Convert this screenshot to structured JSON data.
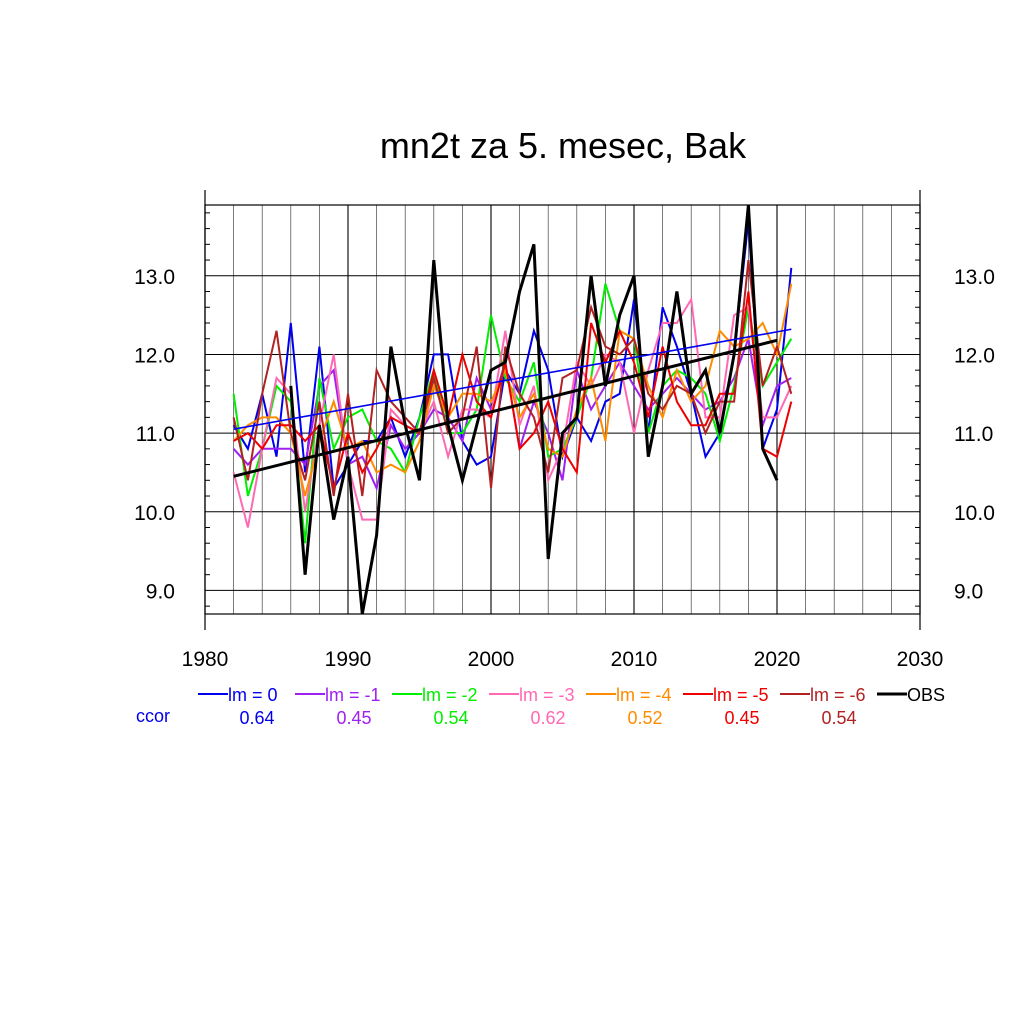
{
  "chart_data": {
    "type": "line",
    "title": "mn2t za 5. mesec, Bak",
    "xlabel": "",
    "ylabel": "",
    "xlim": [
      1980,
      2030
    ],
    "ylim": [
      8.7,
      13.9
    ],
    "x_ticks": [
      1980,
      1990,
      2000,
      2010,
      2020,
      2030
    ],
    "x_tick_labels": [
      "1980",
      "1990",
      "2000",
      "2010",
      "2020",
      "2030"
    ],
    "y_ticks": [
      9,
      10,
      11,
      12,
      13
    ],
    "y_tick_labels": [
      "9.0",
      "10.0",
      "11.0",
      "12.0",
      "13.0"
    ],
    "grid": true,
    "x": [
      1982,
      1983,
      1984,
      1985,
      1986,
      1987,
      1988,
      1989,
      1990,
      1991,
      1992,
      1993,
      1994,
      1995,
      1996,
      1997,
      1998,
      1999,
      2000,
      2001,
      2002,
      2003,
      2004,
      2005,
      2006,
      2007,
      2008,
      2009,
      2010,
      2011,
      2012,
      2013,
      2014,
      2015,
      2016,
      2017,
      2018,
      2019,
      2020,
      2021
    ],
    "series": [
      {
        "name": "lm = 0",
        "color": "#0000ee",
        "values": [
          11.1,
          10.8,
          11.5,
          10.7,
          12.4,
          10.5,
          12.1,
          10.3,
          10.6,
          10.9,
          10.9,
          11.2,
          10.7,
          11.2,
          12.0,
          12.0,
          10.9,
          10.6,
          10.7,
          11.8,
          11.5,
          12.3,
          11.8,
          10.7,
          11.2,
          10.9,
          11.4,
          11.5,
          12.7,
          11.0,
          12.6,
          12.1,
          11.5,
          10.7,
          11.0,
          12.0,
          13.7,
          10.8,
          11.3,
          13.1
        ]
      },
      {
        "name": "lm = -1",
        "color": "#a020f0",
        "values": [
          10.8,
          10.6,
          10.8,
          10.8,
          10.8,
          10.6,
          11.6,
          11.8,
          10.6,
          10.7,
          10.3,
          11.1,
          10.8,
          11.0,
          11.3,
          11.2,
          10.9,
          11.7,
          11.3,
          11.9,
          10.8,
          11.4,
          11.0,
          10.4,
          11.8,
          11.3,
          11.6,
          11.9,
          11.6,
          11.3,
          11.5,
          11.7,
          11.5,
          11.3,
          11.4,
          11.7,
          12.2,
          11.1,
          11.6,
          11.7
        ]
      },
      {
        "name": "lm = -2",
        "color": "#00ee00",
        "values": [
          11.5,
          10.2,
          10.8,
          11.6,
          11.4,
          9.6,
          11.7,
          10.8,
          11.2,
          11.3,
          10.9,
          10.8,
          10.5,
          11.2,
          11.8,
          11.0,
          11.0,
          11.3,
          12.5,
          11.7,
          11.4,
          11.9,
          10.7,
          10.8,
          11.2,
          11.7,
          12.9,
          12.3,
          12.2,
          11.0,
          11.6,
          11.8,
          11.7,
          11.5,
          10.9,
          11.6,
          12.6,
          11.6,
          11.9,
          12.2
        ]
      },
      {
        "name": "lm = -3",
        "color": "#ff69b4",
        "values": [
          10.5,
          9.8,
          10.8,
          11.7,
          11.5,
          10.0,
          11.1,
          12.0,
          10.6,
          9.9,
          9.9,
          11.3,
          11.1,
          11.0,
          11.4,
          10.7,
          11.3,
          11.3,
          11.2,
          12.3,
          11.1,
          11.6,
          10.4,
          10.8,
          11.9,
          11.6,
          12.0,
          11.9,
          11.0,
          11.8,
          12.4,
          12.4,
          12.7,
          11.2,
          11.2,
          12.5,
          12.6,
          11.2,
          11.2,
          11.6
        ]
      },
      {
        "name": "lm = -4",
        "color": "#ff8c00",
        "values": [
          10.9,
          11.1,
          11.2,
          11.2,
          11.0,
          10.2,
          10.9,
          11.4,
          10.8,
          10.9,
          10.5,
          10.6,
          10.5,
          10.9,
          11.6,
          11.2,
          11.5,
          11.5,
          11.4,
          11.8,
          11.2,
          11.5,
          10.8,
          10.7,
          11.3,
          11.7,
          10.9,
          12.3,
          12.2,
          11.6,
          11.2,
          11.8,
          11.4,
          11.6,
          12.3,
          12.1,
          12.2,
          12.4,
          12.0,
          12.9
        ]
      },
      {
        "name": "lm = -5",
        "color": "#ee0000",
        "values": [
          10.9,
          11.0,
          10.8,
          11.1,
          11.1,
          10.9,
          11.1,
          10.3,
          11.0,
          10.5,
          10.8,
          11.2,
          11.1,
          11.0,
          11.8,
          11.2,
          12.0,
          11.4,
          11.2,
          11.9,
          10.8,
          11.0,
          11.4,
          10.8,
          10.5,
          12.4,
          11.9,
          12.3,
          11.9,
          11.2,
          12.1,
          11.4,
          11.1,
          11.1,
          11.5,
          11.5,
          12.8,
          10.8,
          10.7,
          11.4
        ]
      },
      {
        "name": "lm = -6",
        "color": "#b22222",
        "values": [
          11.2,
          10.4,
          11.5,
          12.3,
          11.0,
          10.4,
          11.4,
          10.2,
          11.5,
          10.2,
          11.8,
          11.4,
          11.2,
          11.0,
          11.7,
          11.0,
          11.2,
          12.1,
          10.3,
          12.1,
          11.5,
          11.2,
          10.5,
          11.7,
          11.8,
          12.6,
          12.1,
          12.0,
          12.2,
          11.5,
          11.3,
          11.6,
          11.5,
          11.0,
          11.4,
          11.4,
          13.2,
          11.6,
          12.1,
          11.5
        ]
      },
      {
        "name": "OBS",
        "color": "#000000",
        "values": [
          null,
          null,
          null,
          null,
          11.6,
          9.2,
          11.1,
          9.9,
          10.7,
          8.7,
          9.7,
          12.1,
          11.1,
          10.4,
          13.2,
          11.1,
          10.4,
          11.1,
          11.8,
          11.9,
          12.8,
          13.4,
          9.4,
          11.0,
          11.2,
          13.0,
          11.6,
          12.5,
          13.0,
          10.7,
          11.6,
          12.8,
          11.5,
          11.8,
          11.0,
          12.0,
          13.9,
          10.8,
          10.4,
          null
        ]
      }
    ],
    "trend_lines": [
      {
        "series": "lm = 0",
        "color": "#0000ee",
        "x": [
          1982,
          2021
        ],
        "y": [
          11.05,
          12.32
        ]
      },
      {
        "series": "OBS",
        "color": "#000000",
        "x": [
          1982,
          2020
        ],
        "y": [
          10.45,
          12.18
        ]
      }
    ],
    "legend": {
      "placement": "bottom",
      "ccor_label": "ccor",
      "ccor_label_color": "#0000ee",
      "ccor_values": [
        "0.64",
        "0.45",
        "0.54",
        "0.62",
        "0.52",
        "0.45",
        "0.54"
      ]
    }
  }
}
